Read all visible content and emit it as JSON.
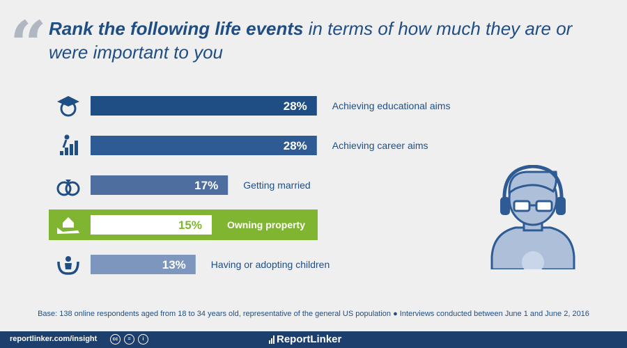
{
  "header": {
    "quote_glyph": "“",
    "title_strong": "Rank the following life events",
    "title_rest": " in terms of how much they are or were important to you"
  },
  "chart_data": {
    "type": "bar",
    "orientation": "horizontal",
    "title": "Rank the following life events in terms of how much they are or were important to you",
    "categories": [
      "Achieving educational aims",
      "Achieving career aims",
      "Getting married",
      "Owning property",
      "Having or adopting children"
    ],
    "values": [
      28,
      28,
      17,
      15,
      13
    ],
    "value_labels": [
      "28%",
      "28%",
      "17%",
      "15%",
      "13%"
    ],
    "unit": "%",
    "icons": [
      "graduate-icon",
      "career-stairs-icon",
      "wedding-rings-icon",
      "house-in-hand-icon",
      "family-care-icon"
    ],
    "highlight_index": 3,
    "bar_colors": [
      "#1f4e85",
      "#2e5b94",
      "#4e6e9f",
      "#ffffff",
      "#7d96bd"
    ],
    "highlight_color": "#7fb530",
    "grid": false,
    "legend": "none"
  },
  "footnote": "Base: 138 online respondents aged from 18 to 34 years old, representative of the general US population ● Interviews conducted between June 1 and June 2, 2016",
  "footer": {
    "link": "reportlinker.com/insight",
    "license_icons": [
      "cc",
      "=",
      "i"
    ],
    "brand": "ReportLinker"
  }
}
